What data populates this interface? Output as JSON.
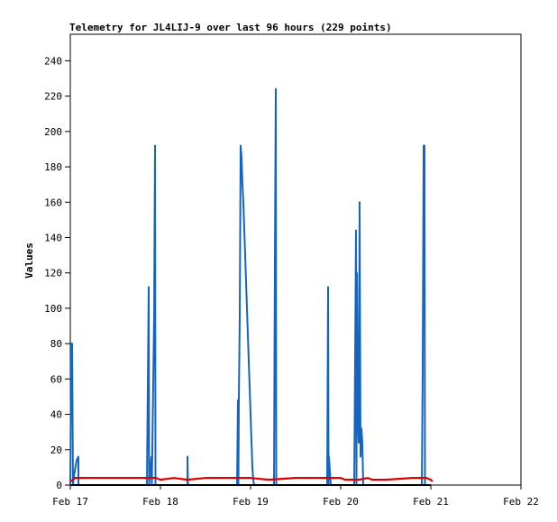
{
  "chart_data": {
    "type": "line",
    "title": "Telemetry for JL4LIJ-9 over last 96 hours (229 points)",
    "xlabel": "",
    "ylabel": "Values",
    "xlim": [
      0,
      5
    ],
    "ylim": [
      0,
      255
    ],
    "x_ticks": [
      {
        "value": 0,
        "label": "Feb 17"
      },
      {
        "value": 1,
        "label": "Feb 18"
      },
      {
        "value": 2,
        "label": "Feb 19"
      },
      {
        "value": 3,
        "label": "Feb 20"
      },
      {
        "value": 4,
        "label": "Feb 21"
      },
      {
        "value": 5,
        "label": "Feb 22"
      }
    ],
    "y_ticks": [
      0,
      20,
      40,
      60,
      80,
      100,
      120,
      140,
      160,
      180,
      200,
      220,
      240
    ],
    "grid": false,
    "series": [
      {
        "color": "#1565c0",
        "points": [
          [
            0.0,
            0
          ],
          [
            0.01,
            80
          ],
          [
            0.02,
            80
          ],
          [
            0.025,
            40
          ],
          [
            0.03,
            0
          ],
          [
            0.04,
            5
          ],
          [
            0.07,
            14
          ],
          [
            0.09,
            16
          ],
          [
            0.09,
            0
          ],
          [
            0.85,
            0
          ],
          [
            0.86,
            56
          ],
          [
            0.87,
            112
          ],
          [
            0.875,
            0
          ],
          [
            0.9,
            16
          ],
          [
            0.905,
            0
          ],
          [
            0.93,
            96
          ],
          [
            0.94,
            192
          ],
          [
            0.945,
            0
          ],
          [
            1.3,
            0
          ],
          [
            1.3,
            16
          ],
          [
            1.305,
            0
          ],
          [
            1.85,
            0
          ],
          [
            1.86,
            48
          ],
          [
            1.865,
            0
          ],
          [
            1.87,
            48
          ],
          [
            1.88,
            96
          ],
          [
            1.89,
            192
          ],
          [
            1.9,
            185
          ],
          [
            1.91,
            170
          ],
          [
            1.92,
            160
          ],
          [
            1.93,
            145
          ],
          [
            1.94,
            130
          ],
          [
            1.95,
            115
          ],
          [
            1.96,
            100
          ],
          [
            1.97,
            85
          ],
          [
            1.98,
            70
          ],
          [
            1.99,
            55
          ],
          [
            2.0,
            40
          ],
          [
            2.01,
            25
          ],
          [
            2.02,
            10
          ],
          [
            2.03,
            3
          ],
          [
            2.04,
            0
          ],
          [
            2.26,
            0
          ],
          [
            2.27,
            128
          ],
          [
            2.28,
            224
          ],
          [
            2.285,
            0
          ],
          [
            2.85,
            0
          ],
          [
            2.86,
            112
          ],
          [
            2.865,
            0
          ],
          [
            2.87,
            16
          ],
          [
            2.88,
            8
          ],
          [
            2.89,
            0
          ],
          [
            3.15,
            0
          ],
          [
            3.16,
            72
          ],
          [
            3.17,
            144
          ],
          [
            3.175,
            0
          ],
          [
            3.18,
            120
          ],
          [
            3.19,
            40
          ],
          [
            3.2,
            24
          ],
          [
            3.21,
            160
          ],
          [
            3.22,
            16
          ],
          [
            3.23,
            32
          ],
          [
            3.24,
            24
          ],
          [
            3.25,
            0
          ],
          [
            3.9,
            0
          ],
          [
            3.91,
            64
          ],
          [
            3.92,
            192
          ],
          [
            3.93,
            192
          ],
          [
            3.935,
            0
          ]
        ]
      },
      {
        "color": "#dd0000",
        "points": [
          [
            0.0,
            2
          ],
          [
            0.03,
            3
          ],
          [
            0.05,
            4
          ],
          [
            0.5,
            4
          ],
          [
            0.95,
            4
          ],
          [
            1.0,
            3
          ],
          [
            1.15,
            4
          ],
          [
            1.3,
            3
          ],
          [
            1.5,
            4
          ],
          [
            2.0,
            4
          ],
          [
            2.2,
            3
          ],
          [
            2.5,
            4
          ],
          [
            3.0,
            4
          ],
          [
            3.05,
            3
          ],
          [
            3.2,
            3
          ],
          [
            3.3,
            4
          ],
          [
            3.35,
            3
          ],
          [
            3.5,
            3
          ],
          [
            3.8,
            4
          ],
          [
            3.95,
            4
          ],
          [
            4.0,
            3
          ],
          [
            4.02,
            2
          ]
        ]
      },
      {
        "color": "#000000",
        "points": [
          [
            0.0,
            0
          ],
          [
            4.0,
            0
          ]
        ]
      }
    ]
  }
}
